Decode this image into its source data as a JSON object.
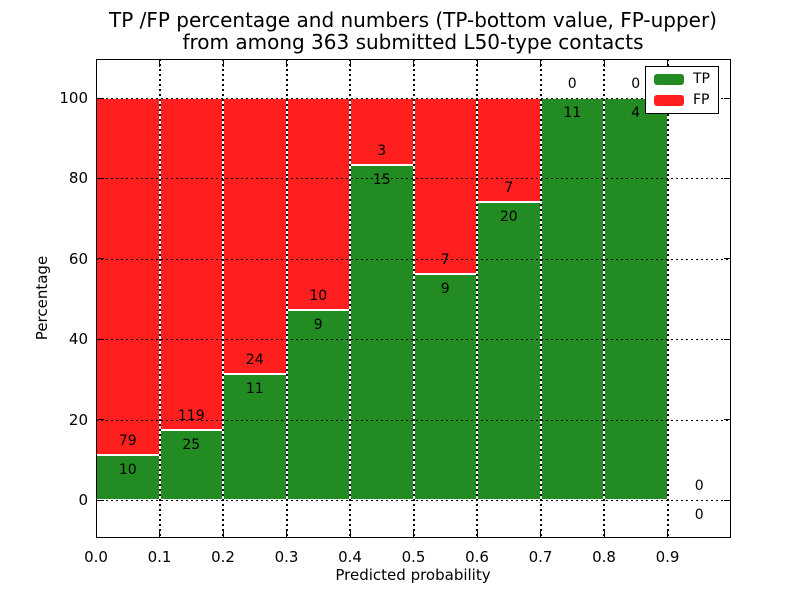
{
  "chart_data": {
    "type": "bar",
    "stacked": true,
    "normalization": "each bin stacked to 100 percent (TP bottom, FP upper)",
    "title_line1": "TP /FP percentage and numbers (TP-bottom value, FP-upper)",
    "title_line2": "from among 363 submitted L50-type contacts",
    "xlabel": "Predicted probability",
    "ylabel": "Percentage",
    "total_submitted_contacts": 363,
    "xlim": [
      0.0,
      1.0
    ],
    "ylim": [
      -10,
      110
    ],
    "grid": {
      "visible": true,
      "style": "dotted"
    },
    "x_ticks": [
      "0.0",
      "0.1",
      "0.2",
      "0.3",
      "0.4",
      "0.5",
      "0.6",
      "0.7",
      "0.8",
      "0.9"
    ],
    "y_ticks": [
      "0",
      "20",
      "40",
      "60",
      "80",
      "100"
    ],
    "colors": {
      "tp": "#228b22",
      "fp": "#ff1f1f"
    },
    "legend": {
      "position": "upper right",
      "entries": [
        {
          "label": "TP",
          "color": "#228b22"
        },
        {
          "label": "FP",
          "color": "#ff1f1f"
        }
      ]
    },
    "bins": [
      {
        "x_range": [
          0.0,
          0.1
        ],
        "tp": 10,
        "fp": 79,
        "tp_pct": 11.2
      },
      {
        "x_range": [
          0.1,
          0.2
        ],
        "tp": 25,
        "fp": 119,
        "tp_pct": 17.4
      },
      {
        "x_range": [
          0.2,
          0.3
        ],
        "tp": 11,
        "fp": 24,
        "tp_pct": 31.4
      },
      {
        "x_range": [
          0.3,
          0.4
        ],
        "tp": 9,
        "fp": 10,
        "tp_pct": 47.4
      },
      {
        "x_range": [
          0.4,
          0.5
        ],
        "tp": 15,
        "fp": 3,
        "tp_pct": 83.3
      },
      {
        "x_range": [
          0.5,
          0.6
        ],
        "tp": 9,
        "fp": 7,
        "tp_pct": 56.2
      },
      {
        "x_range": [
          0.6,
          0.7
        ],
        "tp": 20,
        "fp": 7,
        "tp_pct": 74.1
      },
      {
        "x_range": [
          0.7,
          0.8
        ],
        "tp": 11,
        "fp": 0,
        "tp_pct": 100.0
      },
      {
        "x_range": [
          0.8,
          0.9
        ],
        "tp": 4,
        "fp": 0,
        "tp_pct": 100.0
      },
      {
        "x_range": [
          0.9,
          1.0
        ],
        "tp": 0,
        "fp": 0,
        "tp_pct": null
      }
    ]
  }
}
